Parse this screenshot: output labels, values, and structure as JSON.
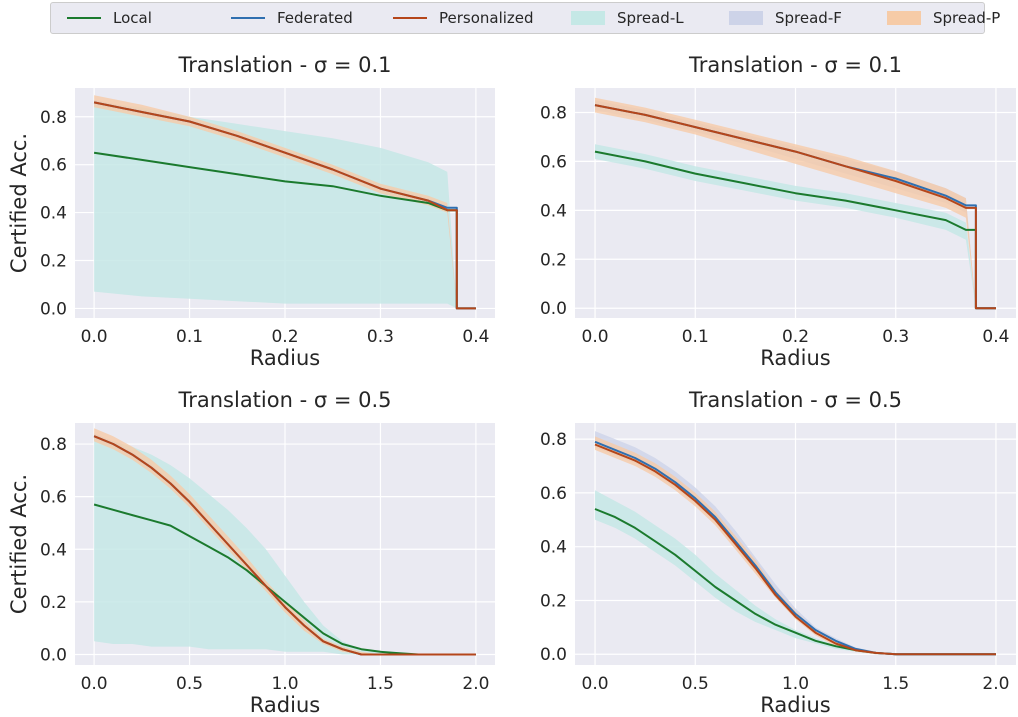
{
  "legend": {
    "placement": "top-center",
    "entries": [
      {
        "label": "Local",
        "kind": "line",
        "color": "#1b7a2e"
      },
      {
        "label": "Federated",
        "kind": "line",
        "color": "#2f6fb0"
      },
      {
        "label": "Personalized",
        "kind": "line",
        "color": "#b5461a"
      },
      {
        "label": "Spread-L",
        "kind": "patch",
        "color": "#c5e8e6"
      },
      {
        "label": "Spread-F",
        "kind": "patch",
        "color": "#cdd3e8"
      },
      {
        "label": "Spread-P",
        "kind": "patch",
        "color": "#f6cba7"
      }
    ]
  },
  "chart_data": [
    {
      "type": "line",
      "title": "Translation - σ = 0.1",
      "xlabel": "Radius",
      "ylabel": "Certified Acc.",
      "xlim": [
        -0.02,
        0.42
      ],
      "ylim": [
        -0.04,
        0.92
      ],
      "xticks": [
        "0.0",
        "0.1",
        "0.2",
        "0.3",
        "0.4"
      ],
      "yticks": [
        "0.0",
        "0.2",
        "0.4",
        "0.6",
        "0.8"
      ],
      "grid": true,
      "drop_x": 0.38,
      "x": [
        0.0,
        0.05,
        0.1,
        0.15,
        0.2,
        0.25,
        0.3,
        0.35,
        0.37,
        0.38,
        0.4
      ],
      "series": [
        {
          "name": "Local",
          "values": [
            0.65,
            0.62,
            0.59,
            0.56,
            0.53,
            0.51,
            0.47,
            0.44,
            0.41,
            0.0,
            0.0
          ]
        },
        {
          "name": "Federated",
          "values": [
            0.86,
            0.82,
            0.78,
            0.72,
            0.65,
            0.58,
            0.5,
            0.45,
            0.42,
            0.0,
            0.0
          ]
        },
        {
          "name": "Personalized",
          "values": [
            0.86,
            0.82,
            0.78,
            0.72,
            0.65,
            0.58,
            0.5,
            0.45,
            0.41,
            0.0,
            0.0
          ]
        }
      ],
      "bands": [
        {
          "name": "Spread-L",
          "lower": [
            0.07,
            0.05,
            0.04,
            0.03,
            0.02,
            0.02,
            0.02,
            0.02,
            0.02,
            0.0,
            0.0
          ],
          "upper": [
            0.86,
            0.84,
            0.8,
            0.77,
            0.74,
            0.71,
            0.67,
            0.61,
            0.57,
            0.0,
            0.0
          ]
        },
        {
          "name": "Spread-F",
          "lower": [
            0.85,
            0.81,
            0.77,
            0.71,
            0.64,
            0.57,
            0.49,
            0.44,
            0.41,
            0.0,
            0.0
          ],
          "upper": [
            0.87,
            0.83,
            0.79,
            0.73,
            0.66,
            0.59,
            0.51,
            0.46,
            0.43,
            0.0,
            0.0
          ]
        },
        {
          "name": "Spread-P",
          "lower": [
            0.84,
            0.8,
            0.76,
            0.7,
            0.63,
            0.56,
            0.48,
            0.43,
            0.4,
            0.0,
            0.0
          ],
          "upper": [
            0.89,
            0.85,
            0.8,
            0.74,
            0.67,
            0.6,
            0.52,
            0.47,
            0.44,
            0.0,
            0.0
          ]
        }
      ]
    },
    {
      "type": "line",
      "title": "Translation - σ = 0.1",
      "xlabel": "Radius",
      "ylabel": "",
      "xlim": [
        -0.02,
        0.42
      ],
      "ylim": [
        -0.04,
        0.9
      ],
      "xticks": [
        "0.0",
        "0.1",
        "0.2",
        "0.3",
        "0.4"
      ],
      "yticks": [
        "0.0",
        "0.2",
        "0.4",
        "0.6",
        "0.8"
      ],
      "grid": true,
      "drop_x": 0.38,
      "x": [
        0.0,
        0.05,
        0.1,
        0.15,
        0.2,
        0.25,
        0.3,
        0.35,
        0.37,
        0.38,
        0.4
      ],
      "series": [
        {
          "name": "Local",
          "values": [
            0.64,
            0.6,
            0.55,
            0.51,
            0.47,
            0.44,
            0.4,
            0.36,
            0.32,
            0.0,
            0.0
          ]
        },
        {
          "name": "Federated",
          "values": [
            0.83,
            0.79,
            0.74,
            0.69,
            0.64,
            0.58,
            0.53,
            0.46,
            0.42,
            0.0,
            0.0
          ]
        },
        {
          "name": "Personalized",
          "values": [
            0.83,
            0.79,
            0.74,
            0.69,
            0.64,
            0.58,
            0.52,
            0.45,
            0.41,
            0.0,
            0.0
          ]
        }
      ],
      "bands": [
        {
          "name": "Spread-L",
          "lower": [
            0.61,
            0.57,
            0.52,
            0.48,
            0.44,
            0.41,
            0.37,
            0.32,
            0.28,
            0.0,
            0.0
          ],
          "upper": [
            0.67,
            0.63,
            0.58,
            0.54,
            0.5,
            0.47,
            0.43,
            0.39,
            0.35,
            0.0,
            0.0
          ]
        },
        {
          "name": "Spread-F",
          "lower": [
            0.81,
            0.77,
            0.72,
            0.67,
            0.61,
            0.55,
            0.49,
            0.43,
            0.39,
            0.0,
            0.0
          ],
          "upper": [
            0.85,
            0.81,
            0.76,
            0.71,
            0.66,
            0.61,
            0.56,
            0.49,
            0.45,
            0.0,
            0.0
          ]
        },
        {
          "name": "Spread-P",
          "lower": [
            0.8,
            0.76,
            0.71,
            0.65,
            0.59,
            0.53,
            0.47,
            0.41,
            0.37,
            0.0,
            0.0
          ],
          "upper": [
            0.86,
            0.82,
            0.77,
            0.72,
            0.67,
            0.62,
            0.56,
            0.49,
            0.45,
            0.0,
            0.0
          ]
        }
      ]
    },
    {
      "type": "line",
      "title": "Translation - σ = 0.5",
      "xlabel": "Radius",
      "ylabel": "Certified Acc.",
      "xlim": [
        -0.1,
        2.1
      ],
      "ylim": [
        -0.04,
        0.88
      ],
      "xticks": [
        "0.0",
        "0.5",
        "1.0",
        "1.5",
        "2.0"
      ],
      "yticks": [
        "0.0",
        "0.2",
        "0.4",
        "0.6",
        "0.8"
      ],
      "grid": true,
      "x": [
        0.0,
        0.1,
        0.2,
        0.3,
        0.4,
        0.5,
        0.6,
        0.7,
        0.8,
        0.9,
        1.0,
        1.1,
        1.2,
        1.3,
        1.4,
        1.5,
        1.6,
        1.7,
        2.0
      ],
      "series": [
        {
          "name": "Local",
          "values": [
            0.57,
            0.55,
            0.53,
            0.51,
            0.49,
            0.45,
            0.41,
            0.37,
            0.32,
            0.26,
            0.2,
            0.14,
            0.08,
            0.04,
            0.02,
            0.01,
            0.005,
            0.0,
            0.0
          ]
        },
        {
          "name": "Federated",
          "values": [
            0.83,
            0.8,
            0.76,
            0.71,
            0.65,
            0.58,
            0.5,
            0.42,
            0.34,
            0.26,
            0.18,
            0.11,
            0.05,
            0.02,
            0.0,
            0.0,
            0.0,
            0.0,
            0.0
          ]
        },
        {
          "name": "Personalized",
          "values": [
            0.83,
            0.8,
            0.76,
            0.71,
            0.65,
            0.58,
            0.5,
            0.42,
            0.34,
            0.26,
            0.18,
            0.11,
            0.05,
            0.02,
            0.0,
            0.0,
            0.0,
            0.0,
            0.0
          ]
        }
      ],
      "bands": [
        {
          "name": "Spread-L",
          "lower": [
            0.05,
            0.04,
            0.04,
            0.03,
            0.03,
            0.03,
            0.02,
            0.02,
            0.02,
            0.02,
            0.01,
            0.01,
            0.01,
            0.0,
            0.0,
            0.0,
            0.0,
            0.0,
            0.0
          ],
          "upper": [
            0.83,
            0.81,
            0.79,
            0.76,
            0.72,
            0.67,
            0.61,
            0.55,
            0.48,
            0.4,
            0.3,
            0.2,
            0.11,
            0.05,
            0.02,
            0.01,
            0.005,
            0.0,
            0.0
          ]
        },
        {
          "name": "Spread-F",
          "lower": [
            0.82,
            0.79,
            0.75,
            0.7,
            0.64,
            0.57,
            0.49,
            0.41,
            0.33,
            0.25,
            0.17,
            0.1,
            0.045,
            0.015,
            0.0,
            0.0,
            0.0,
            0.0,
            0.0
          ],
          "upper": [
            0.84,
            0.81,
            0.77,
            0.72,
            0.66,
            0.59,
            0.51,
            0.43,
            0.35,
            0.27,
            0.19,
            0.12,
            0.055,
            0.025,
            0.005,
            0.0,
            0.0,
            0.0,
            0.0
          ]
        },
        {
          "name": "Spread-P",
          "lower": [
            0.81,
            0.78,
            0.74,
            0.69,
            0.63,
            0.56,
            0.48,
            0.4,
            0.32,
            0.24,
            0.16,
            0.09,
            0.04,
            0.01,
            0.0,
            0.0,
            0.0,
            0.0,
            0.0
          ],
          "upper": [
            0.86,
            0.83,
            0.79,
            0.74,
            0.68,
            0.61,
            0.53,
            0.45,
            0.37,
            0.28,
            0.2,
            0.13,
            0.06,
            0.03,
            0.01,
            0.0,
            0.0,
            0.0,
            0.0
          ]
        }
      ]
    },
    {
      "type": "line",
      "title": "Translation - σ = 0.5",
      "xlabel": "Radius",
      "ylabel": "",
      "xlim": [
        -0.1,
        2.1
      ],
      "ylim": [
        -0.04,
        0.86
      ],
      "xticks": [
        "0.0",
        "0.5",
        "1.0",
        "1.5",
        "2.0"
      ],
      "yticks": [
        "0.0",
        "0.2",
        "0.4",
        "0.6",
        "0.8"
      ],
      "grid": true,
      "x": [
        0.0,
        0.1,
        0.2,
        0.3,
        0.4,
        0.5,
        0.6,
        0.7,
        0.8,
        0.9,
        1.0,
        1.1,
        1.2,
        1.3,
        1.4,
        1.5,
        1.6,
        1.7,
        2.0
      ],
      "series": [
        {
          "name": "Local",
          "values": [
            0.54,
            0.51,
            0.47,
            0.42,
            0.37,
            0.31,
            0.25,
            0.2,
            0.15,
            0.11,
            0.08,
            0.05,
            0.03,
            0.015,
            0.005,
            0.0,
            0.0,
            0.0,
            0.0
          ]
        },
        {
          "name": "Federated",
          "values": [
            0.79,
            0.76,
            0.73,
            0.69,
            0.64,
            0.58,
            0.51,
            0.42,
            0.33,
            0.23,
            0.15,
            0.09,
            0.05,
            0.02,
            0.005,
            0.0,
            0.0,
            0.0,
            0.0
          ]
        },
        {
          "name": "Personalized",
          "values": [
            0.78,
            0.75,
            0.72,
            0.68,
            0.63,
            0.57,
            0.5,
            0.41,
            0.32,
            0.22,
            0.14,
            0.08,
            0.04,
            0.015,
            0.005,
            0.0,
            0.0,
            0.0,
            0.0
          ]
        }
      ],
      "bands": [
        {
          "name": "Spread-L",
          "lower": [
            0.5,
            0.47,
            0.43,
            0.38,
            0.33,
            0.27,
            0.21,
            0.16,
            0.12,
            0.09,
            0.06,
            0.04,
            0.02,
            0.01,
            0.0,
            0.0,
            0.0,
            0.0,
            0.0
          ],
          "upper": [
            0.61,
            0.57,
            0.53,
            0.48,
            0.43,
            0.37,
            0.3,
            0.24,
            0.18,
            0.13,
            0.09,
            0.06,
            0.035,
            0.02,
            0.01,
            0.0,
            0.0,
            0.0,
            0.0
          ]
        },
        {
          "name": "Spread-F",
          "lower": [
            0.77,
            0.74,
            0.71,
            0.67,
            0.62,
            0.56,
            0.49,
            0.4,
            0.31,
            0.22,
            0.14,
            0.08,
            0.04,
            0.015,
            0.0,
            0.0,
            0.0,
            0.0,
            0.0
          ],
          "upper": [
            0.83,
            0.8,
            0.77,
            0.73,
            0.68,
            0.62,
            0.55,
            0.46,
            0.36,
            0.26,
            0.17,
            0.1,
            0.06,
            0.025,
            0.01,
            0.0,
            0.0,
            0.0,
            0.0
          ]
        },
        {
          "name": "Spread-P",
          "lower": [
            0.76,
            0.73,
            0.7,
            0.66,
            0.61,
            0.55,
            0.48,
            0.39,
            0.3,
            0.21,
            0.13,
            0.07,
            0.03,
            0.01,
            0.0,
            0.0,
            0.0,
            0.0,
            0.0
          ],
          "upper": [
            0.81,
            0.78,
            0.75,
            0.71,
            0.66,
            0.6,
            0.53,
            0.44,
            0.35,
            0.24,
            0.16,
            0.09,
            0.05,
            0.02,
            0.01,
            0.0,
            0.0,
            0.0,
            0.0
          ]
        }
      ]
    }
  ]
}
